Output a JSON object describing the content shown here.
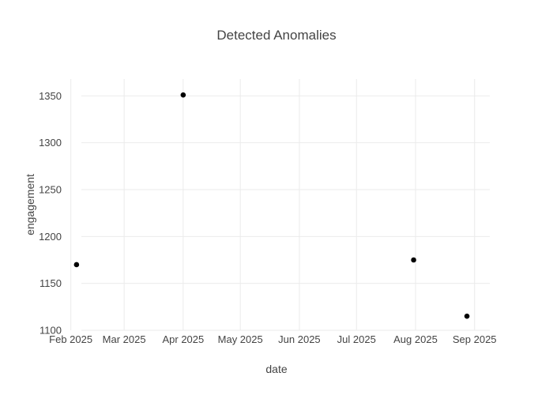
{
  "chart_data": {
    "type": "scatter",
    "title": "Detected Anomalies",
    "xlabel": "date",
    "ylabel": "engagement",
    "x_axis_type": "date",
    "xlim": [
      "2025-01-28",
      "2025-09-09"
    ],
    "ylim": [
      1100,
      1368
    ],
    "x_ticks": [
      {
        "value": "2025-02-01",
        "label": "Feb 2025"
      },
      {
        "value": "2025-03-01",
        "label": "Mar 2025"
      },
      {
        "value": "2025-04-01",
        "label": "Apr 2025"
      },
      {
        "value": "2025-05-01",
        "label": "May 2025"
      },
      {
        "value": "2025-06-01",
        "label": "Jun 2025"
      },
      {
        "value": "2025-07-01",
        "label": "Jul 2025"
      },
      {
        "value": "2025-08-01",
        "label": "Aug 2025"
      },
      {
        "value": "2025-09-01",
        "label": "Sep 2025"
      }
    ],
    "y_ticks": [
      1100,
      1150,
      1200,
      1250,
      1300,
      1350
    ],
    "grid": true,
    "marker_color": "#000000",
    "points": [
      {
        "x": "2025-02-04",
        "y": 1170
      },
      {
        "x": "2025-04-01",
        "y": 1351
      },
      {
        "x": "2025-07-31",
        "y": 1175
      },
      {
        "x": "2025-08-28",
        "y": 1115
      }
    ]
  }
}
